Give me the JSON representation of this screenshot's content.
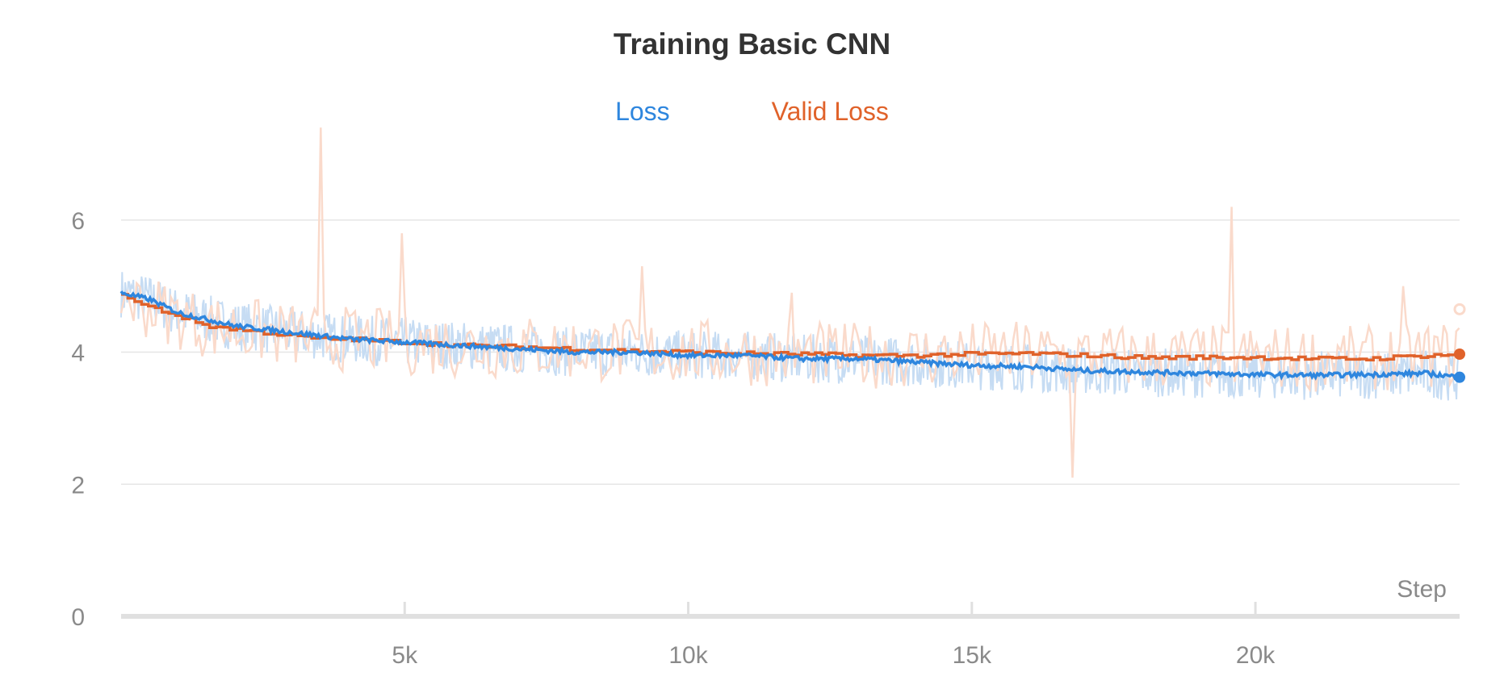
{
  "chart_data": {
    "type": "line",
    "title": "Training Basic CNN",
    "xlabel": "Step",
    "ylabel": "",
    "xlim": [
      0,
      23600
    ],
    "ylim": [
      0,
      7.5
    ],
    "x_ticks": [
      5000,
      10000,
      15000,
      20000
    ],
    "x_tick_labels": [
      "5k",
      "10k",
      "15k",
      "20k"
    ],
    "y_ticks": [
      0,
      2,
      4,
      6
    ],
    "y_tick_labels": [
      "0",
      "2",
      "4",
      "6"
    ],
    "grid": true,
    "legend_position": "top-center",
    "series": [
      {
        "name": "Loss",
        "color": "#2e86de",
        "raw_color": "#c6dcf3",
        "smoothed": [
          [
            0,
            4.9
          ],
          [
            500,
            4.8
          ],
          [
            1000,
            4.6
          ],
          [
            1500,
            4.5
          ],
          [
            2000,
            4.4
          ],
          [
            2500,
            4.35
          ],
          [
            3000,
            4.3
          ],
          [
            3500,
            4.25
          ],
          [
            4000,
            4.2
          ],
          [
            5000,
            4.15
          ],
          [
            6000,
            4.1
          ],
          [
            7000,
            4.05
          ],
          [
            8000,
            4.0
          ],
          [
            9000,
            4.0
          ],
          [
            10000,
            3.95
          ],
          [
            11000,
            3.95
          ],
          [
            12000,
            3.9
          ],
          [
            13000,
            3.9
          ],
          [
            14000,
            3.85
          ],
          [
            15000,
            3.8
          ],
          [
            16000,
            3.78
          ],
          [
            17000,
            3.72
          ],
          [
            18000,
            3.7
          ],
          [
            19000,
            3.68
          ],
          [
            20000,
            3.66
          ],
          [
            21000,
            3.65
          ],
          [
            22000,
            3.66
          ],
          [
            23000,
            3.68
          ],
          [
            23600,
            3.62
          ]
        ],
        "last_value": 3.62
      },
      {
        "name": "Valid Loss",
        "color": "#e0622a",
        "raw_color": "#fadacb",
        "smoothed": [
          [
            0,
            4.9
          ],
          [
            250,
            4.75
          ],
          [
            1000,
            4.55
          ],
          [
            1500,
            4.4
          ],
          [
            2500,
            4.3
          ],
          [
            3000,
            4.25
          ],
          [
            3500,
            4.2
          ],
          [
            4000,
            4.2
          ],
          [
            5000,
            4.15
          ],
          [
            6000,
            4.1
          ],
          [
            7000,
            4.08
          ],
          [
            8000,
            4.05
          ],
          [
            9000,
            4.02
          ],
          [
            10000,
            4.0
          ],
          [
            11000,
            3.98
          ],
          [
            12000,
            3.97
          ],
          [
            13000,
            3.95
          ],
          [
            14000,
            3.95
          ],
          [
            15000,
            3.97
          ],
          [
            16000,
            3.98
          ],
          [
            17000,
            3.95
          ],
          [
            18000,
            3.92
          ],
          [
            19000,
            3.92
          ],
          [
            20000,
            3.92
          ],
          [
            21000,
            3.9
          ],
          [
            22000,
            3.9
          ],
          [
            23000,
            3.95
          ],
          [
            23600,
            3.97
          ]
        ],
        "raw_spikes": [
          [
            3500,
            7.4
          ],
          [
            4950,
            5.8
          ],
          [
            9200,
            5.3
          ],
          [
            11800,
            4.9
          ],
          [
            16800,
            2.1
          ],
          [
            19600,
            6.2
          ],
          [
            22600,
            5.0
          ]
        ],
        "raw_last": 4.65,
        "last_value": 3.97
      }
    ]
  }
}
